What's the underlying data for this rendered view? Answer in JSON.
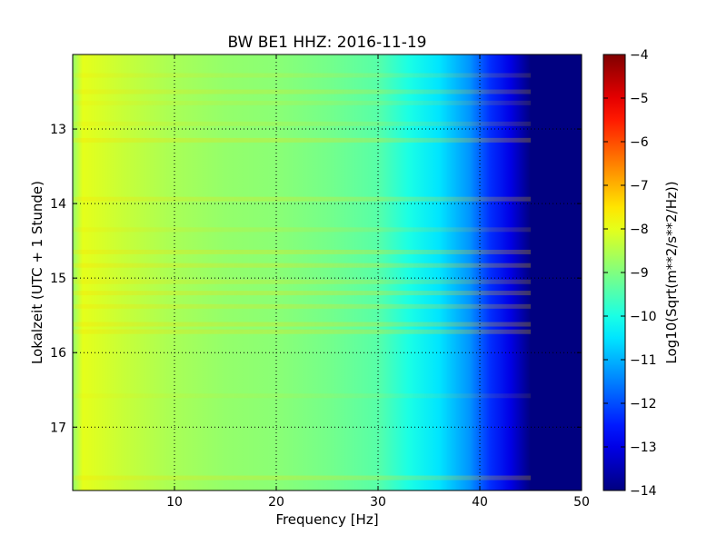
{
  "chart_data": {
    "type": "heatmap",
    "title": "BW BE1 HHZ: 2016-11-19",
    "xlabel": "Frequency [Hz]",
    "ylabel": "Lokalzeit (UTC + 1 Stunde)",
    "xlim": [
      0,
      50
    ],
    "ylim": [
      17.85,
      12.0
    ],
    "x_ticks": [
      10,
      20,
      30,
      40,
      50
    ],
    "y_ticks": [
      13,
      14,
      15,
      16,
      17
    ],
    "grid": true,
    "colormap": "jet",
    "colorbar": {
      "label": "Log10(Sqrt(m**2/s**2/Hz))",
      "range": [
        -14,
        -4
      ],
      "ticks": [
        -4,
        -5,
        -6,
        -7,
        -8,
        -9,
        -10,
        -11,
        -12,
        -13,
        -14
      ]
    },
    "spectral_profile": [
      {
        "freq": 0,
        "value": -8.8
      },
      {
        "freq": 1,
        "value": -8.0
      },
      {
        "freq": 5,
        "value": -8.3
      },
      {
        "freq": 10,
        "value": -8.6
      },
      {
        "freq": 15,
        "value": -8.8
      },
      {
        "freq": 20,
        "value": -8.9
      },
      {
        "freq": 25,
        "value": -9.1
      },
      {
        "freq": 30,
        "value": -9.4
      },
      {
        "freq": 33,
        "value": -10.0
      },
      {
        "freq": 36,
        "value": -10.5
      },
      {
        "freq": 39,
        "value": -11.3
      },
      {
        "freq": 41,
        "value": -12.3
      },
      {
        "freq": 43,
        "value": -13.0
      },
      {
        "freq": 45,
        "value": -14.0
      },
      {
        "freq": 50,
        "value": -14.0
      }
    ],
    "bands": [
      {
        "time": 12.28,
        "strength": 0.6
      },
      {
        "time": 12.5,
        "strength": 0.8
      },
      {
        "time": 12.65,
        "strength": 0.5
      },
      {
        "time": 12.93,
        "strength": 0.6
      },
      {
        "time": 13.15,
        "strength": 1.0
      },
      {
        "time": 13.94,
        "strength": 0.9
      },
      {
        "time": 14.35,
        "strength": 0.6
      },
      {
        "time": 14.65,
        "strength": 1.0
      },
      {
        "time": 14.83,
        "strength": 1.0
      },
      {
        "time": 15.05,
        "strength": 0.8
      },
      {
        "time": 15.2,
        "strength": 1.0
      },
      {
        "time": 15.38,
        "strength": 0.9
      },
      {
        "time": 15.62,
        "strength": 1.0
      },
      {
        "time": 15.72,
        "strength": 1.0
      },
      {
        "time": 16.58,
        "strength": 0.4
      },
      {
        "time": 17.68,
        "strength": 0.9
      }
    ]
  }
}
